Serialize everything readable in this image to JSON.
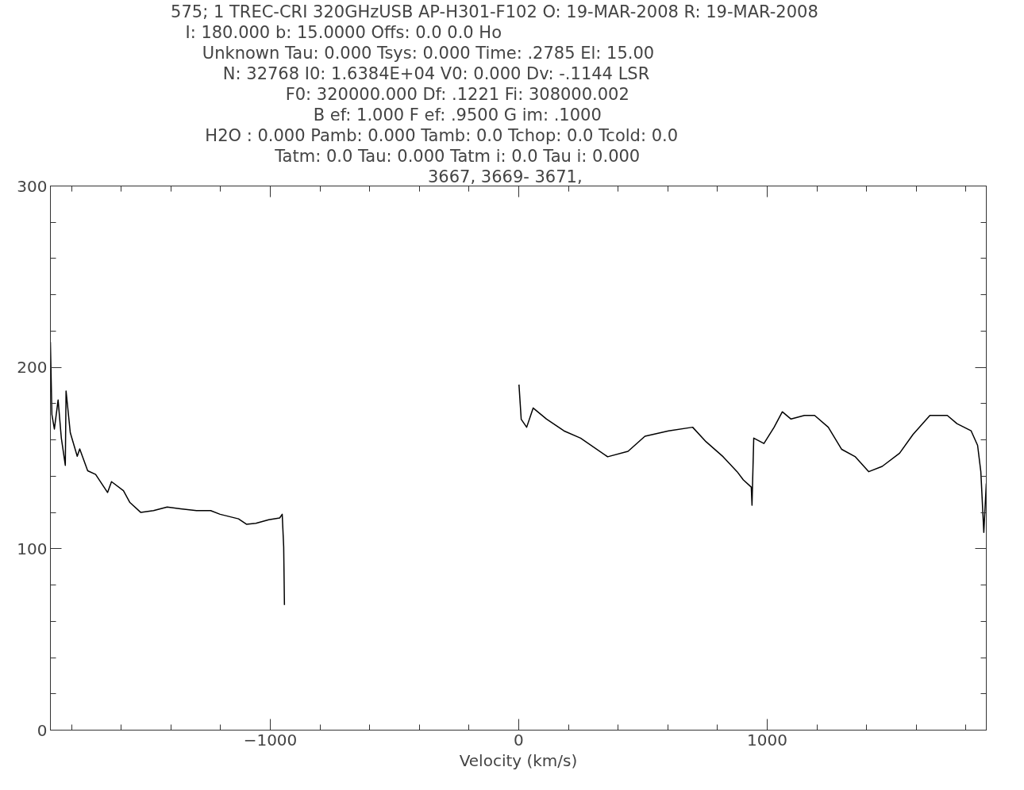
{
  "chart_data": {
    "type": "line",
    "annotations": [
      "575;  1 TREC-CRI      320GHzUSB    AP-H301-F102 O: 19-MAR-2008 R: 19-MAR-2008",
      "I:    180.000        b:    15.0000                              Offs:       0.0              0.0      Ho",
      "Unknown    Tau:    0.000       Tsys:    0.000        Time:    .2785         El:  15.00",
      "N: 32768   I0:   1.6384E+04          V0:    0.000       Dv:   -.1144        LSR",
      "F0:    320000.000        Df:    .1221        Fi:    308000.002",
      "B ef:    1.000        F ef:    .9500        G im:    .1000",
      "H2O :    0.000        Pamb:    0.000        Tamb:    0.0 Tchop:    0.0 Tcold:    0.0",
      "Tatm:    0.0   Tau:    0.000        Tatm i:    0.0   Tau i:    0.000",
      "3667,    3669-   3671,"
    ],
    "xlabel": "Velocity (km/s)",
    "xlim": [
      -1885,
      1882
    ],
    "ylim": [
      0,
      300
    ],
    "xticks": [
      {
        "value": -1800,
        "label": null
      },
      {
        "value": -1600,
        "label": null
      },
      {
        "value": -1400,
        "label": null
      },
      {
        "value": -1200,
        "label": null
      },
      -1000,
      {
        "value": -800,
        "label": null
      },
      {
        "value": -600,
        "label": null
      },
      {
        "value": -400,
        "label": null
      },
      {
        "value": -200,
        "label": null
      },
      0,
      {
        "value": 200,
        "label": null
      },
      {
        "value": 400,
        "label": null
      },
      {
        "value": 600,
        "label": null
      },
      {
        "value": 800,
        "label": null
      },
      1000,
      {
        "value": 1200,
        "label": null
      },
      {
        "value": 1400,
        "label": null
      },
      {
        "value": 1600,
        "label": null
      },
      {
        "value": 1800,
        "label": null
      }
    ],
    "yticks": [
      0,
      {
        "value": 20,
        "label": null
      },
      {
        "value": 40,
        "label": null
      },
      {
        "value": 60,
        "label": null
      },
      {
        "value": 80,
        "label": null
      },
      100,
      {
        "value": 120,
        "label": null
      },
      {
        "value": 140,
        "label": null
      },
      {
        "value": 160,
        "label": null
      },
      {
        "value": 180,
        "label": null
      },
      200,
      {
        "value": 220,
        "label": null
      },
      {
        "value": 240,
        "label": null
      },
      {
        "value": 260,
        "label": null
      },
      {
        "value": 280,
        "label": null
      },
      300
    ],
    "grid": false,
    "marker": "none",
    "line_style": "solid",
    "series": [
      {
        "color": "#000000",
        "x": [
          -1885,
          -1879,
          -1869,
          -1854,
          -1841,
          -1825,
          -1822,
          -1805,
          -1777,
          -1767,
          -1735,
          -1703,
          -1655,
          -1639,
          -1591,
          -1565,
          -1521,
          -1470,
          -1415,
          -1361,
          -1297,
          -1240,
          -1202,
          -1128,
          -1096,
          -1058,
          -1006,
          -962,
          -952,
          -946,
          -943
        ],
        "values": [
          214,
          174,
          166,
          182,
          161,
          146,
          187,
          164,
          151,
          155,
          143,
          141,
          131,
          137,
          132,
          125.5,
          120,
          121,
          123,
          122,
          121,
          121,
          119,
          116.5,
          113.5,
          114,
          116,
          117,
          119,
          101,
          69
        ]
      },
      {
        "color": "#000000",
        "x": [
          1,
          10,
          32,
          58,
          112,
          182,
          249,
          358,
          440,
          508,
          603,
          700,
          754,
          823,
          879,
          904,
          936,
          939,
          946,
          987,
          1028,
          1061,
          1096,
          1150,
          1191,
          1246,
          1300,
          1355,
          1409,
          1463,
          1533,
          1587,
          1655,
          1725,
          1764,
          1821,
          1847,
          1860,
          1872,
          1882
        ],
        "values": [
          190.5,
          171.4,
          167,
          177.6,
          171.5,
          165,
          161,
          150.7,
          153.7,
          162,
          165,
          167,
          159,
          150.7,
          142.5,
          138,
          134,
          124,
          161,
          158,
          167,
          175.5,
          171.5,
          173.5,
          173.5,
          167,
          154.8,
          150.7,
          142.5,
          145.4,
          152.7,
          163,
          173.5,
          173.5,
          169,
          165,
          157,
          142.5,
          109,
          136
        ]
      }
    ]
  }
}
